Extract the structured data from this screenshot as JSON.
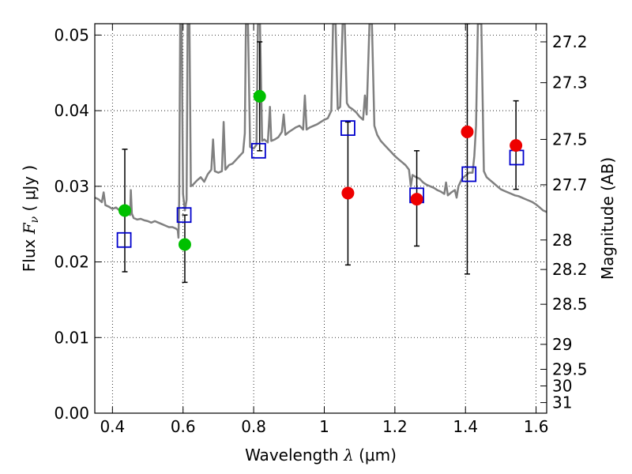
{
  "chart_data": {
    "type": "scatter",
    "xlabel": {
      "prefix": "Wavelength  ",
      "symbol": "λ",
      "unit": " (μm)"
    },
    "ylabel": {
      "prefix": "Flux  ",
      "symbol": "F",
      "sub": "ν",
      "unit": "  ( μJy )"
    },
    "y2label": "Magnitude (AB)",
    "xlim": [
      0.35,
      1.63
    ],
    "ylim": [
      0.0,
      0.0515
    ],
    "grid": true,
    "xticks": [
      {
        "v": 0.4,
        "label": "0.4"
      },
      {
        "v": 0.6,
        "label": "0.6"
      },
      {
        "v": 0.8,
        "label": "0.8"
      },
      {
        "v": 1.0,
        "label": "1"
      },
      {
        "v": 1.2,
        "label": "1.2"
      },
      {
        "v": 1.4,
        "label": "1.4"
      },
      {
        "v": 1.6,
        "label": "1.6"
      }
    ],
    "yticks": [
      {
        "v": 0.0,
        "label": "0.00"
      },
      {
        "v": 0.01,
        "label": "0.01"
      },
      {
        "v": 0.02,
        "label": "0.02"
      },
      {
        "v": 0.03,
        "label": "0.03"
      },
      {
        "v": 0.04,
        "label": "0.04"
      },
      {
        "v": 0.05,
        "label": "0.05"
      }
    ],
    "mag_ticks": [
      {
        "v": 0.0491,
        "label": "27.2"
      },
      {
        "v": 0.0437,
        "label": "27.3"
      },
      {
        "v": 0.0362,
        "label": "27.5"
      },
      {
        "v": 0.0302,
        "label": "27.7"
      },
      {
        "v": 0.0229,
        "label": "28"
      },
      {
        "v": 0.019,
        "label": "28.2"
      },
      {
        "v": 0.0144,
        "label": "28.5"
      },
      {
        "v": 0.0091,
        "label": "29"
      },
      {
        "v": 0.0058,
        "label": "29.5"
      },
      {
        "v": 0.0036,
        "label": "30"
      },
      {
        "v": 0.0014,
        "label": "31"
      }
    ],
    "series": [
      {
        "kind": "template_spectrum",
        "color": "#808080",
        "points": [
          [
            0.35,
            0.0285
          ],
          [
            0.36,
            0.0283
          ],
          [
            0.37,
            0.0279
          ],
          [
            0.375,
            0.0292
          ],
          [
            0.38,
            0.0275
          ],
          [
            0.39,
            0.0273
          ],
          [
            0.4,
            0.027
          ],
          [
            0.41,
            0.0272
          ],
          [
            0.42,
            0.0268
          ],
          [
            0.43,
            0.0263
          ],
          [
            0.44,
            0.0265
          ],
          [
            0.45,
            0.0262
          ],
          [
            0.452,
            0.0295
          ],
          [
            0.455,
            0.0264
          ],
          [
            0.46,
            0.0258
          ],
          [
            0.47,
            0.0256
          ],
          [
            0.48,
            0.0257
          ],
          [
            0.49,
            0.0255
          ],
          [
            0.5,
            0.0254
          ],
          [
            0.51,
            0.0252
          ],
          [
            0.52,
            0.0254
          ],
          [
            0.53,
            0.0252
          ],
          [
            0.54,
            0.025
          ],
          [
            0.55,
            0.0248
          ],
          [
            0.56,
            0.0246
          ],
          [
            0.57,
            0.0246
          ],
          [
            0.58,
            0.0244
          ],
          [
            0.585,
            0.0242
          ],
          [
            0.587,
            0.0232
          ],
          [
            0.589,
            0.0282
          ],
          [
            0.592,
            0.0515
          ],
          [
            0.596,
            0.0515
          ],
          [
            0.6,
            0.029
          ],
          [
            0.605,
            0.0268
          ],
          [
            0.61,
            0.0282
          ],
          [
            0.613,
            0.0515
          ],
          [
            0.618,
            0.0515
          ],
          [
            0.622,
            0.03
          ],
          [
            0.628,
            0.0302
          ],
          [
            0.64,
            0.0308
          ],
          [
            0.65,
            0.0312
          ],
          [
            0.66,
            0.0306
          ],
          [
            0.67,
            0.0316
          ],
          [
            0.68,
            0.0322
          ],
          [
            0.685,
            0.0362
          ],
          [
            0.69,
            0.032
          ],
          [
            0.7,
            0.0318
          ],
          [
            0.71,
            0.032
          ],
          [
            0.715,
            0.0385
          ],
          [
            0.72,
            0.0322
          ],
          [
            0.73,
            0.0328
          ],
          [
            0.74,
            0.033
          ],
          [
            0.75,
            0.0335
          ],
          [
            0.76,
            0.034
          ],
          [
            0.77,
            0.0345
          ],
          [
            0.775,
            0.037
          ],
          [
            0.778,
            0.0515
          ],
          [
            0.784,
            0.0515
          ],
          [
            0.79,
            0.0352
          ],
          [
            0.8,
            0.035
          ],
          [
            0.808,
            0.0355
          ],
          [
            0.812,
            0.0515
          ],
          [
            0.818,
            0.0515
          ],
          [
            0.824,
            0.036
          ],
          [
            0.83,
            0.0362
          ],
          [
            0.84,
            0.0358
          ],
          [
            0.846,
            0.0405
          ],
          [
            0.85,
            0.036
          ],
          [
            0.86,
            0.0362
          ],
          [
            0.87,
            0.0365
          ],
          [
            0.88,
            0.0372
          ],
          [
            0.885,
            0.0395
          ],
          [
            0.89,
            0.0368
          ],
          [
            0.9,
            0.0372
          ],
          [
            0.91,
            0.0375
          ],
          [
            0.92,
            0.0378
          ],
          [
            0.93,
            0.038
          ],
          [
            0.94,
            0.0375
          ],
          [
            0.945,
            0.042
          ],
          [
            0.95,
            0.0375
          ],
          [
            0.96,
            0.0378
          ],
          [
            0.97,
            0.038
          ],
          [
            0.98,
            0.0382
          ],
          [
            0.99,
            0.0385
          ],
          [
            1.0,
            0.0388
          ],
          [
            1.01,
            0.039
          ],
          [
            1.02,
            0.04
          ],
          [
            1.025,
            0.0515
          ],
          [
            1.032,
            0.0515
          ],
          [
            1.038,
            0.0402
          ],
          [
            1.045,
            0.0405
          ],
          [
            1.052,
            0.0515
          ],
          [
            1.058,
            0.0515
          ],
          [
            1.064,
            0.041
          ],
          [
            1.07,
            0.0405
          ],
          [
            1.08,
            0.0402
          ],
          [
            1.09,
            0.0398
          ],
          [
            1.1,
            0.0392
          ],
          [
            1.11,
            0.0388
          ],
          [
            1.115,
            0.042
          ],
          [
            1.12,
            0.0395
          ],
          [
            1.128,
            0.0515
          ],
          [
            1.135,
            0.0515
          ],
          [
            1.142,
            0.038
          ],
          [
            1.15,
            0.0368
          ],
          [
            1.16,
            0.036
          ],
          [
            1.17,
            0.0355
          ],
          [
            1.18,
            0.035
          ],
          [
            1.19,
            0.0345
          ],
          [
            1.2,
            0.034
          ],
          [
            1.21,
            0.0336
          ],
          [
            1.22,
            0.0332
          ],
          [
            1.23,
            0.0328
          ],
          [
            1.24,
            0.0322
          ],
          [
            1.245,
            0.03
          ],
          [
            1.25,
            0.0315
          ],
          [
            1.26,
            0.0312
          ],
          [
            1.27,
            0.031
          ],
          [
            1.28,
            0.0305
          ],
          [
            1.29,
            0.0302
          ],
          [
            1.3,
            0.03
          ],
          [
            1.31,
            0.0298
          ],
          [
            1.32,
            0.0295
          ],
          [
            1.33,
            0.0293
          ],
          [
            1.34,
            0.029
          ],
          [
            1.345,
            0.0305
          ],
          [
            1.35,
            0.0288
          ],
          [
            1.36,
            0.0292
          ],
          [
            1.37,
            0.0295
          ],
          [
            1.375,
            0.0285
          ],
          [
            1.38,
            0.03
          ],
          [
            1.39,
            0.031
          ],
          [
            1.4,
            0.0314
          ],
          [
            1.41,
            0.0318
          ],
          [
            1.42,
            0.0318
          ],
          [
            1.425,
            0.034
          ],
          [
            1.43,
            0.038
          ],
          [
            1.435,
            0.0515
          ],
          [
            1.445,
            0.0515
          ],
          [
            1.452,
            0.032
          ],
          [
            1.46,
            0.0312
          ],
          [
            1.47,
            0.0308
          ],
          [
            1.48,
            0.0304
          ],
          [
            1.49,
            0.03
          ],
          [
            1.5,
            0.0296
          ],
          [
            1.51,
            0.0294
          ],
          [
            1.52,
            0.0292
          ],
          [
            1.53,
            0.029
          ],
          [
            1.54,
            0.0288
          ],
          [
            1.55,
            0.0287
          ],
          [
            1.56,
            0.0285
          ],
          [
            1.57,
            0.0283
          ],
          [
            1.58,
            0.0281
          ],
          [
            1.59,
            0.0279
          ],
          [
            1.6,
            0.0276
          ],
          [
            1.61,
            0.0272
          ],
          [
            1.62,
            0.0268
          ],
          [
            1.63,
            0.0266
          ]
        ]
      },
      {
        "kind": "model_flux",
        "marker": "open-square",
        "color": "#0000cc",
        "points": [
          [
            0.433,
            0.0229
          ],
          [
            0.603,
            0.0262
          ],
          [
            0.814,
            0.0347
          ],
          [
            1.067,
            0.0377
          ],
          [
            1.262,
            0.0288
          ],
          [
            1.41,
            0.0316
          ],
          [
            1.545,
            0.0338
          ]
        ]
      },
      {
        "kind": "observed_errorbars",
        "color": "#000000",
        "points": [
          {
            "x": 0.435,
            "lo": 0.0187,
            "hi": 0.0349
          },
          {
            "x": 0.605,
            "lo": 0.0173,
            "hi": 0.0262
          },
          {
            "x": 0.817,
            "lo": 0.0347,
            "hi": 0.0491
          },
          {
            "x": 1.067,
            "lo": 0.0196,
            "hi": 0.0385
          },
          {
            "x": 1.262,
            "lo": 0.0221,
            "hi": 0.0347
          },
          {
            "x": 1.405,
            "lo": 0.0184,
            "hi": 0.0515
          },
          {
            "x": 1.543,
            "lo": 0.0296,
            "hi": 0.0413
          }
        ]
      },
      {
        "kind": "detections_green",
        "marker": "filled-circle",
        "color": "#00c000",
        "points": [
          [
            0.435,
            0.0268
          ],
          [
            0.605,
            0.0223
          ],
          [
            0.817,
            0.0419
          ]
        ]
      },
      {
        "kind": "detections_red",
        "marker": "filled-circle",
        "color": "#ee0000",
        "points": [
          [
            1.067,
            0.0291
          ],
          [
            1.262,
            0.0283
          ],
          [
            1.405,
            0.0372
          ],
          [
            1.543,
            0.0354
          ]
        ]
      }
    ]
  }
}
